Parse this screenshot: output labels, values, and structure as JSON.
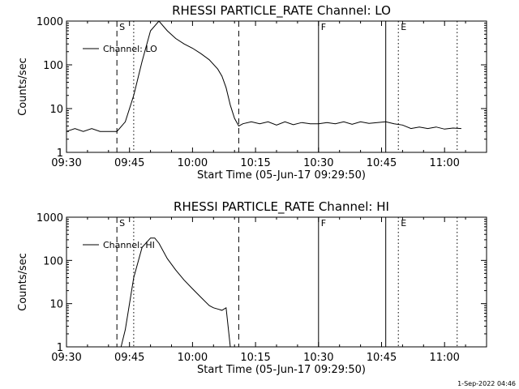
{
  "footer_timestamp": "1-Sep-2022 04:46",
  "chart_data": [
    {
      "type": "line",
      "title": "RHESSI PARTICLE_RATE Channel: LO",
      "xlabel": "Start Time (05-Jun-17 09:29:50)",
      "ylabel": "Counts/sec",
      "yscale": "log",
      "xlim": [
        "09:30",
        "11:10"
      ],
      "ylim": [
        1,
        1000
      ],
      "x_ticks": [
        "09:30",
        "09:45",
        "10:00",
        "10:15",
        "10:30",
        "10:45",
        "11:00"
      ],
      "y_ticks": [
        "1",
        "10",
        "100",
        "1000"
      ],
      "legend": {
        "label": "Channel: LO",
        "position": "top-left"
      },
      "markers": [
        {
          "label": "S",
          "time": "09:42",
          "style": "dashed"
        },
        {
          "label": "",
          "time": "09:46",
          "style": "dotted"
        },
        {
          "label": "",
          "time": "10:11",
          "style": "dashed"
        },
        {
          "label": "F",
          "time": "10:30",
          "style": "solid"
        },
        {
          "label": "",
          "time": "10:46",
          "style": "solid"
        },
        {
          "label": "E",
          "time": "10:49",
          "style": "dotted"
        },
        {
          "label": "",
          "time": "11:03",
          "style": "dotted"
        }
      ],
      "series": [
        {
          "name": "Channel: LO",
          "x": [
            "09:30",
            "09:32",
            "09:34",
            "09:36",
            "09:38",
            "09:40",
            "09:42",
            "09:44",
            "09:46",
            "09:48",
            "09:50",
            "09:52",
            "09:54",
            "09:56",
            "09:58",
            "10:00",
            "10:02",
            "10:04",
            "10:06",
            "10:07",
            "10:08",
            "10:09",
            "10:10",
            "10:11",
            "10:12",
            "10:14",
            "10:16",
            "10:18",
            "10:20",
            "10:22",
            "10:24",
            "10:26",
            "10:28",
            "10:30",
            "10:32",
            "10:34",
            "10:36",
            "10:38",
            "10:40",
            "10:42",
            "10:44",
            "10:46",
            "10:48",
            "10:50",
            "10:52",
            "10:54",
            "10:56",
            "10:58",
            "11:00",
            "11:02",
            "11:04"
          ],
          "values": [
            3.0,
            3.5,
            3.0,
            3.5,
            3.0,
            3.0,
            3.0,
            5.0,
            20,
            120,
            600,
            1000,
            600,
            400,
            300,
            240,
            180,
            130,
            80,
            55,
            30,
            12,
            6,
            4,
            4.5,
            5,
            4.5,
            5,
            4.2,
            5,
            4.3,
            4.8,
            4.5,
            4.5,
            4.8,
            4.5,
            5,
            4.4,
            5,
            4.6,
            4.8,
            5,
            4.5,
            4.2,
            3.5,
            3.8,
            3.5,
            3.8,
            3.4,
            3.6,
            3.5
          ]
        }
      ]
    },
    {
      "type": "line",
      "title": "RHESSI PARTICLE_RATE Channel: HI",
      "xlabel": "Start Time (05-Jun-17 09:29:50)",
      "ylabel": "Counts/sec",
      "yscale": "log",
      "xlim": [
        "09:30",
        "11:10"
      ],
      "ylim": [
        1,
        1000
      ],
      "x_ticks": [
        "09:30",
        "09:45",
        "10:00",
        "10:15",
        "10:30",
        "10:45",
        "11:00"
      ],
      "y_ticks": [
        "1",
        "10",
        "100",
        "1000"
      ],
      "legend": {
        "label": "Channel: HI",
        "position": "top-left"
      },
      "markers": [
        {
          "label": "S",
          "time": "09:42",
          "style": "dashed"
        },
        {
          "label": "",
          "time": "09:46",
          "style": "dotted"
        },
        {
          "label": "",
          "time": "10:11",
          "style": "dashed"
        },
        {
          "label": "F",
          "time": "10:30",
          "style": "solid"
        },
        {
          "label": "",
          "time": "10:46",
          "style": "solid"
        },
        {
          "label": "E",
          "time": "10:49",
          "style": "dotted"
        },
        {
          "label": "",
          "time": "11:03",
          "style": "dotted"
        }
      ],
      "series": [
        {
          "name": "Channel: HI",
          "x": [
            "09:43",
            "09:44",
            "09:46",
            "09:48",
            "09:50",
            "09:51",
            "09:52",
            "09:54",
            "09:56",
            "09:58",
            "10:00",
            "10:02",
            "10:04",
            "10:05",
            "10:06",
            "10:07",
            "10:08",
            "10:09"
          ],
          "values": [
            1.0,
            2.5,
            40,
            200,
            330,
            330,
            250,
            110,
            60,
            35,
            22,
            14,
            9,
            8,
            7.5,
            7,
            8,
            1.0
          ]
        }
      ]
    }
  ]
}
